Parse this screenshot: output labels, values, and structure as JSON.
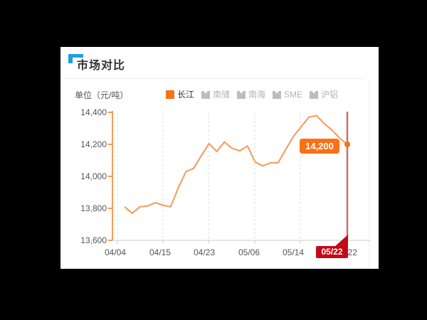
{
  "header": {
    "title": "市场对比"
  },
  "chart": {
    "unit_label": "单位（元/吨）",
    "legend": [
      {
        "label": "长江",
        "active": true
      },
      {
        "label": "南储",
        "active": false
      },
      {
        "label": "南海",
        "active": false
      },
      {
        "label": "SME",
        "active": false
      },
      {
        "label": "沪铝",
        "active": false
      }
    ],
    "tooltip_value": "14,200",
    "pointer_date": "05/22"
  },
  "chart_data": {
    "type": "line",
    "title": "市场对比",
    "ylabel": "单位（元/吨）",
    "series": [
      {
        "name": "长江",
        "values": [
          13810,
          13770,
          13810,
          13815,
          13835,
          13820,
          13810,
          13930,
          14030,
          14050,
          14130,
          14205,
          14155,
          14215,
          14175,
          14160,
          14190,
          14090,
          14065,
          14085,
          14085,
          14170,
          14250,
          14310,
          14370,
          14380,
          14330,
          14290,
          14240,
          14200
        ]
      }
    ],
    "values": [
      13810,
      13770,
      13810,
      13815,
      13835,
      13820,
      13810,
      13930,
      14030,
      14050,
      14130,
      14205,
      14155,
      14215,
      14175,
      14160,
      14190,
      14090,
      14065,
      14085,
      14085,
      14170,
      14250,
      14310,
      14370,
      14380,
      14330,
      14290,
      14240,
      14200
    ],
    "inactive_series": [
      "南储",
      "南海",
      "SME",
      "沪铝"
    ],
    "x_tick_labels": [
      "04/04",
      "04/15",
      "04/23",
      "05/06",
      "05/14",
      "05/22"
    ],
    "x_tick_indices": [
      0,
      5,
      11,
      17,
      23,
      29
    ],
    "y_tick_labels": [
      "13,600",
      "13,800",
      "14,000",
      "14,200",
      "14,400"
    ],
    "ylim": [
      13600,
      14400
    ],
    "grid": "vertical-dashed",
    "legend_position": "top",
    "last_point_label": "14,200",
    "highlighted_x_label": "05/22",
    "colors": {
      "series_line": "#f79a57",
      "accent_orange": "#f87115",
      "pointer_line": "#d26b6b",
      "pointer_badge_red": "#c40a16",
      "title_corner_blue": "#1b9fe0",
      "inactive_gray": "#b9bec4"
    }
  }
}
